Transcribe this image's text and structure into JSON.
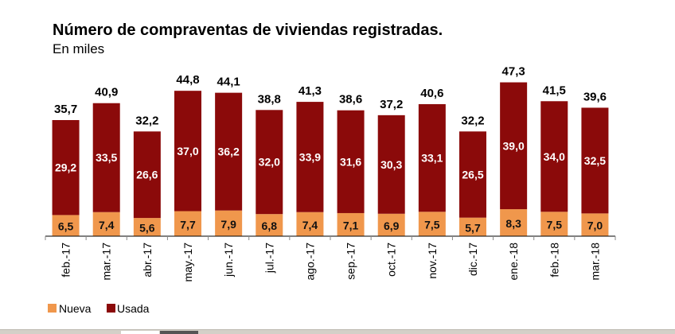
{
  "chart_data": {
    "type": "bar",
    "stacked": true,
    "title": "Número de compraventas de viviendas registradas.",
    "subtitle": "En miles",
    "xlabel": "",
    "ylabel": "",
    "categories": [
      "feb.-17",
      "mar.-17",
      "abr.-17",
      "may.-17",
      "jun.-17",
      "jul.-17",
      "ago.-17",
      "sep.-17",
      "oct.-17",
      "nov.-17",
      "dic.-17",
      "ene.-18",
      "feb.-18",
      "mar.-18"
    ],
    "series": [
      {
        "name": "Nueva",
        "color": "#f0974c",
        "values": [
          6.5,
          7.4,
          5.6,
          7.7,
          7.9,
          6.8,
          7.4,
          7.1,
          6.9,
          7.5,
          5.7,
          8.3,
          7.5,
          7.0
        ],
        "labels": [
          "6,5",
          "7,4",
          "5,6",
          "7,7",
          "7,9",
          "6,8",
          "7,4",
          "7,1",
          "6,9",
          "7,5",
          "5,7",
          "8,3",
          "7,5",
          "7,0"
        ]
      },
      {
        "name": "Usada",
        "color": "#8b0a0a",
        "values": [
          29.2,
          33.5,
          26.6,
          37.0,
          36.2,
          32.0,
          33.9,
          31.6,
          30.3,
          33.1,
          26.5,
          39.0,
          34.0,
          32.5
        ],
        "labels": [
          "29,2",
          "33,5",
          "26,6",
          "37,0",
          "36,2",
          "32,0",
          "33,9",
          "31,6",
          "30,3",
          "33,1",
          "26,5",
          "39,0",
          "34,0",
          "32,5"
        ]
      }
    ],
    "totals": [
      35.7,
      40.9,
      32.2,
      44.8,
      44.1,
      38.8,
      41.3,
      38.6,
      37.2,
      40.6,
      32.2,
      47.3,
      41.5,
      39.6
    ],
    "total_labels": [
      "35,7",
      "40,9",
      "32,2",
      "44,8",
      "44,1",
      "38,8",
      "41,3",
      "38,6",
      "37,2",
      "40,6",
      "32,2",
      "47,3",
      "41,5",
      "39,6"
    ],
    "ylim": [
      0,
      50
    ],
    "grid": false,
    "legend": "bottom-left"
  }
}
